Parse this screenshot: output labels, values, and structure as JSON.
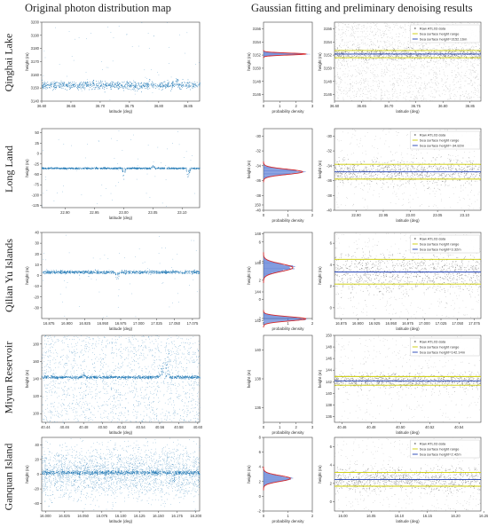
{
  "titles": {
    "left": "Original photon distribution map",
    "right": "Gaussian fitting and preliminary denoising results"
  },
  "row_labels": [
    "Qinghai Lake",
    "Long Land",
    "Qilian Yu Islands",
    "Miyun Reservoir",
    "Ganquan Island"
  ],
  "colors": {
    "photon": "#1f77b4",
    "raw": "#8c8c8c",
    "range": "#cccc00",
    "height": "#1f3fb4",
    "gaussian": "#d62728"
  },
  "chart_data": [
    {
      "type": "scatter",
      "name": "qinghai-original",
      "xlabel": "latitude (deg)",
      "ylabel": "height (m)",
      "xlim": [
        36.6,
        36.87
      ],
      "ylim": [
        3140,
        3200
      ],
      "xticks": [
        36.6,
        36.65,
        36.7,
        36.75,
        36.8,
        36.85
      ],
      "xticklabels": [
        "36.60",
        "36.65",
        "36.70",
        "36.75",
        "36.80",
        "36.85"
      ],
      "yticks": [
        3140,
        3150,
        3160,
        3170,
        3180,
        3190,
        3200
      ],
      "yticklabels": [
        "3140",
        "3150",
        "3160",
        "3170",
        "3180",
        "3190",
        "3200"
      ],
      "surface_height": 3152.16,
      "surface_spread": 1.5,
      "noise": "sparse",
      "features": [
        {
          "x": 36.785,
          "kind": "spike"
        },
        {
          "x": 36.83,
          "kind": "spike"
        }
      ]
    },
    {
      "type": "histogram-fit",
      "name": "qinghai-gaussian",
      "xlabel": "probability density",
      "ylabel": "height (m)",
      "xlim": [
        0,
        3
      ],
      "ylim": [
        3145,
        3157
      ],
      "xticks": [
        0,
        1,
        2,
        3
      ],
      "xticklabels": [
        "0",
        "1",
        "2",
        "3"
      ],
      "yticks": [
        3146,
        3148,
        3150,
        3152,
        3154,
        3156
      ],
      "yticklabels": [
        "3146",
        "3148",
        "3150",
        "3152",
        "3154",
        "3156"
      ],
      "mu": 3152.16,
      "sigma": 0.15,
      "peak": 2.6
    },
    {
      "type": "scatter",
      "name": "qinghai-denoise",
      "xlabel": "latitude (deg)",
      "ylabel": "height (m)",
      "xlim": [
        36.6,
        36.87
      ],
      "ylim": [
        3145,
        3157
      ],
      "xticks": [
        36.6,
        36.65,
        36.7,
        36.75,
        36.8,
        36.85
      ],
      "xticklabels": [
        "36.60",
        "36.65",
        "36.70",
        "36.75",
        "36.80",
        "36.85"
      ],
      "yticks": [
        3146,
        3148,
        3150,
        3152,
        3154,
        3156
      ],
      "yticklabels": [
        "3146",
        "3148",
        "3150",
        "3152",
        "3154",
        "3156"
      ],
      "surface_height": 3152.16,
      "range": [
        3151.6,
        3152.7
      ],
      "noise": "dense",
      "legend": [
        "Raw ATL03 data",
        "Sea surface height range",
        "Sea surface height=3152.16m"
      ]
    },
    {
      "type": "scatter",
      "name": "longland-original",
      "xlabel": "latitude (deg)",
      "ylabel": "height (m)",
      "xlim": [
        22.86,
        23.13
      ],
      "ylim": [
        -130,
        60
      ],
      "xticks": [
        22.9,
        22.95,
        23.0,
        23.05,
        23.1
      ],
      "xticklabels": [
        "22.90",
        "22.95",
        "23.00",
        "23.05",
        "23.10"
      ],
      "yticks": [
        -125,
        -100,
        -75,
        -50,
        -25,
        0,
        25,
        50
      ],
      "yticklabels": [
        "-125",
        "-100",
        "-75",
        "-50",
        "-25",
        "0",
        "25",
        "50"
      ],
      "surface_height": -34.82,
      "surface_spread": 1,
      "noise": "sparse",
      "features": [
        {
          "x": 23.0,
          "kind": "dip"
        },
        {
          "x": 23.11,
          "kind": "dip"
        },
        {
          "x": 23.05,
          "kind": "bump"
        }
      ]
    },
    {
      "type": "histogram-fit",
      "name": "longland-gaussian",
      "xlabel": "probability density",
      "ylabel": "height (m)",
      "xlim": [
        0,
        2
      ],
      "ylim": [
        -40,
        -29
      ],
      "xticks": [
        0,
        1,
        2
      ],
      "xticklabels": [
        "0",
        "1",
        "2"
      ],
      "yticks": [
        -40,
        -38,
        -36,
        -34,
        -32,
        -30
      ],
      "yticklabels": [
        "-40",
        "-38",
        "-36",
        "-34",
        "-32",
        "-30"
      ],
      "mu": -34.82,
      "sigma": 0.35,
      "peak": 1.6
    },
    {
      "type": "scatter",
      "name": "longland-denoise",
      "xlabel": "latitude (deg)",
      "ylabel": "height (m)",
      "xlim": [
        22.86,
        23.13
      ],
      "ylim": [
        -40,
        -29
      ],
      "xticks": [
        22.9,
        22.95,
        23.0,
        23.05,
        23.1
      ],
      "xticklabels": [
        "22.90",
        "22.95",
        "23.00",
        "23.05",
        "23.10"
      ],
      "yticks": [
        -40,
        -38,
        -36,
        -34,
        -32,
        -30
      ],
      "yticklabels": [
        "-40",
        "-38",
        "-36",
        "-34",
        "-32",
        "-30"
      ],
      "surface_height": -34.82,
      "range": [
        -35.8,
        -33.8
      ],
      "noise": "medium",
      "legend": [
        "Raw ATL03 data",
        "Sea surface height range",
        "Sea surface height=-34.82m"
      ]
    },
    {
      "type": "scatter",
      "name": "qilian-original",
      "xlabel": "latitude (deg)",
      "ylabel": "height (m)",
      "xlim": [
        16.865,
        17.085
      ],
      "ylim": [
        -40,
        40
      ],
      "xticks": [
        16.875,
        16.9,
        16.925,
        16.95,
        16.975,
        17.0,
        17.025,
        17.05,
        17.075
      ],
      "xticklabels": [
        "16.875",
        "16.900",
        "16.925",
        "16.950",
        "16.975",
        "17.000",
        "17.025",
        "17.050",
        "17.075"
      ],
      "yticks": [
        -30,
        -20,
        -10,
        0,
        10,
        20,
        30,
        40
      ],
      "yticklabels": [
        "-30",
        "-20",
        "-10",
        "0",
        "10",
        "20",
        "30",
        "40"
      ],
      "surface_height": 3.32,
      "surface_spread": 0.8,
      "noise": "sparse",
      "features": [
        {
          "x": 16.97,
          "kind": "dip"
        }
      ]
    },
    {
      "type": "histogram-fit",
      "name": "qilian-gaussian",
      "xlabel": "probability density",
      "ylabel": "height (m)",
      "xlim": [
        0,
        2
      ],
      "ylim": [
        -2,
        7
      ],
      "xticks": [
        0,
        1,
        2
      ],
      "xticklabels": [
        "0",
        "1",
        "2"
      ],
      "yticks": [
        -2,
        0,
        2,
        4,
        6
      ],
      "yticklabels": [
        "-2",
        "0",
        "2",
        "4",
        "6"
      ],
      "mu": 3.32,
      "sigma": 0.4,
      "peak": 1.2
    },
    {
      "type": "scatter",
      "name": "qilian-denoise",
      "xlabel": "latitude (deg)",
      "ylabel": "height (m)",
      "xlim": [
        16.865,
        17.085
      ],
      "ylim": [
        -1,
        7
      ],
      "xticks": [
        16.875,
        16.9,
        16.925,
        16.95,
        16.975,
        17.0,
        17.025,
        17.05,
        17.075
      ],
      "xticklabels": [
        "16.875",
        "16.900",
        "16.925",
        "16.950",
        "16.975",
        "17.000",
        "17.025",
        "17.050",
        "17.075"
      ],
      "yticks": [
        0,
        2,
        4,
        6
      ],
      "yticklabels": [
        "0",
        "2",
        "4",
        "6"
      ],
      "surface_height": 3.32,
      "range": [
        2.2,
        4.5
      ],
      "noise": "medium",
      "legend": [
        "Raw ATL03 data",
        "Sea surface height range",
        "Sea surface height=3.32m"
      ]
    },
    {
      "type": "scatter",
      "name": "miyun-original",
      "xlabel": "latitude (deg)",
      "ylabel": "height (m)",
      "xlim": [
        40.436,
        40.602
      ],
      "ylim": [
        90,
        190
      ],
      "xticks": [
        40.44,
        40.46,
        40.48,
        40.5,
        40.52,
        40.54,
        40.56,
        40.58,
        40.6
      ],
      "xticklabels": [
        "40.44",
        "40.46",
        "40.48",
        "40.50",
        "40.52",
        "40.54",
        "40.56",
        "40.58",
        "40.60"
      ],
      "yticks": [
        100,
        120,
        140,
        160,
        180
      ],
      "yticklabels": [
        "100",
        "120",
        "140",
        "160",
        "180"
      ],
      "surface_height": 142.14,
      "surface_spread": 0.8,
      "noise": "dense",
      "features": [
        {
          "x": 40.48,
          "kind": "bump"
        },
        {
          "x": 40.56,
          "kind": "ramp"
        }
      ]
    },
    {
      "type": "histogram-fit",
      "name": "miyun-gaussian",
      "xlabel": "probability density",
      "ylabel": "height (m)",
      "xlim": [
        0,
        3
      ],
      "ylim": [
        135,
        141
      ],
      "xticks": [
        0,
        1,
        2,
        3
      ],
      "xticklabels": [
        "0",
        "1",
        "2",
        "3"
      ],
      "yticks": [
        136,
        138,
        140,
        142,
        144,
        146,
        148,
        150
      ],
      "yticklabels": [
        "136",
        "138",
        "140",
        "142",
        "144",
        "146",
        "148",
        "150"
      ],
      "mu": 142.14,
      "sigma": 0.15,
      "peak": 2.6
    },
    {
      "type": "scatter",
      "name": "miyun-denoise",
      "xlabel": "latitude (deg)",
      "ylabel": "height (m)",
      "xlim": [
        40.455,
        40.555
      ],
      "ylim": [
        135,
        150
      ],
      "xticks": [
        40.46,
        40.48,
        40.5,
        40.52,
        40.54
      ],
      "xticklabels": [
        "40.46",
        "40.48",
        "40.50",
        "40.52",
        "40.54"
      ],
      "yticks": [
        136,
        138,
        140,
        142,
        144,
        146,
        148,
        150
      ],
      "yticklabels": [
        "136",
        "138",
        "140",
        "142",
        "144",
        "146",
        "148",
        "150"
      ],
      "surface_height": 142.14,
      "range": [
        141.4,
        142.9
      ],
      "noise": "medium",
      "legend": [
        "Raw ATL03 data",
        "Sea surface height range",
        "Sea surface height=142.14m"
      ]
    },
    {
      "type": "scatter",
      "name": "ganquan-original",
      "xlabel": "latitude (deg)",
      "ylabel": "height (m)",
      "xlim": [
        15.995,
        16.205
      ],
      "ylim": [
        -50,
        50
      ],
      "xticks": [
        16.0,
        16.025,
        16.05,
        16.075,
        16.1,
        16.125,
        16.15,
        16.175,
        16.2
      ],
      "xticklabels": [
        "16.000",
        "16.025",
        "16.050",
        "16.075",
        "16.100",
        "16.125",
        "16.150",
        "16.175",
        "16.200"
      ],
      "yticks": [
        -40,
        -20,
        0,
        20,
        40
      ],
      "yticklabels": [
        "-40",
        "-20",
        "0",
        "20",
        "40"
      ],
      "surface_height": 2.42,
      "surface_spread": 1.5,
      "noise": "very-dense",
      "features": [
        {
          "x": 16.17,
          "kind": "dip"
        }
      ]
    },
    {
      "type": "histogram-fit",
      "name": "ganquan-gaussian",
      "xlabel": "probability density",
      "ylabel": "height (m)",
      "xlim": [
        0,
        2
      ],
      "ylim": [
        -2,
        8
      ],
      "xticks": [
        0,
        1,
        2
      ],
      "xticklabels": [
        "0",
        "1",
        "2"
      ],
      "yticks": [
        -2,
        0,
        2,
        4,
        6,
        8
      ],
      "yticklabels": [
        "-2",
        "0",
        "2",
        "4",
        "6",
        "8"
      ],
      "mu": 2.42,
      "sigma": 0.4,
      "peak": 1.1
    },
    {
      "type": "scatter",
      "name": "ganquan-denoise",
      "xlabel": "latitude (deg)",
      "ylabel": "height (m)",
      "xlim": [
        15.985,
        16.245
      ],
      "ylim": [
        -1,
        7
      ],
      "xticks": [
        16.0,
        16.05,
        16.1,
        16.15,
        16.2,
        16.25
      ],
      "xticklabels": [
        "16.00",
        "16.05",
        "16.10",
        "16.15",
        "16.20",
        "16.25"
      ],
      "yticks": [
        0,
        2,
        4,
        6
      ],
      "yticklabels": [
        "0",
        "2",
        "4",
        "6"
      ],
      "surface_height": 2.42,
      "range": [
        1.7,
        3.2
      ],
      "noise": "medium",
      "legend": [
        "Raw ATL03 data",
        "Sea surface height range",
        "Sea surface height=2.42m"
      ]
    }
  ]
}
